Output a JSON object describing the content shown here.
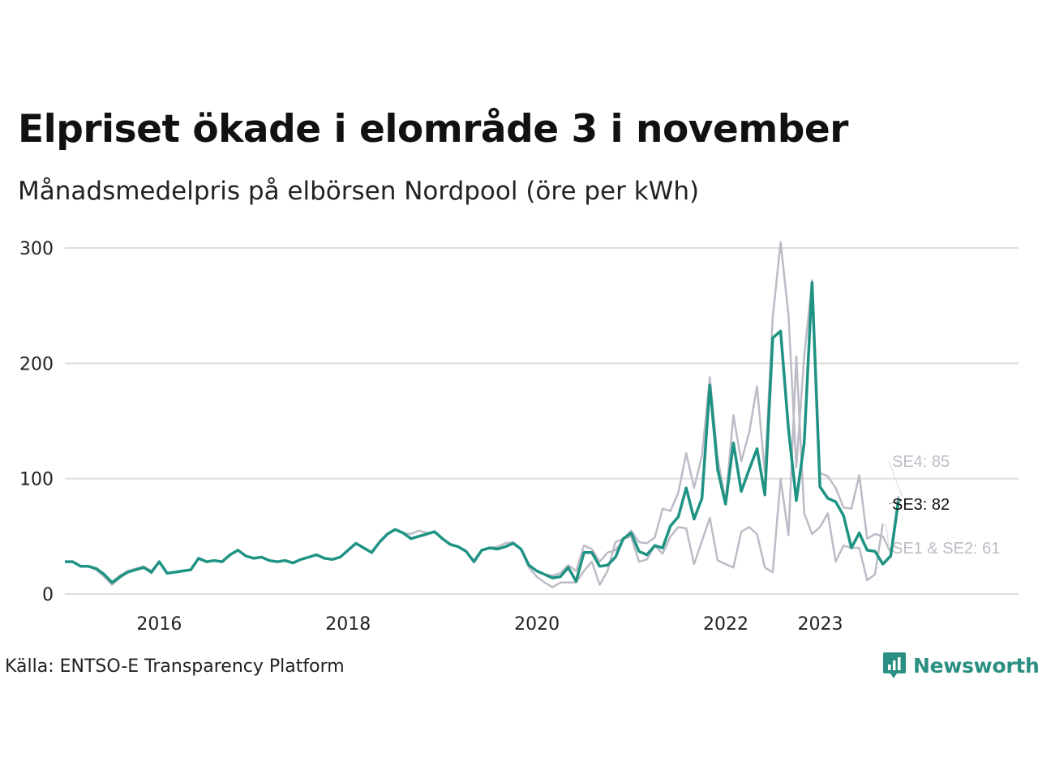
{
  "header": {
    "title": "Elpriset ökade i elområde 3 i november",
    "subtitle": "Månadsmedelpris på elbörsen Nordpool (öre per kWh)"
  },
  "footer": {
    "source": "Källa: ENTSO-E Transparency Platform",
    "brand": "Newsworthy"
  },
  "colors": {
    "highlight": "#1f9383",
    "context": "#bdbbc6",
    "grid": "#dddddd",
    "brand": "#2a8f82"
  },
  "chart_data": {
    "type": "line",
    "title": "Elpriset ökade i elområde 3 i november",
    "ylabel": "öre per kWh",
    "ylim": [
      0,
      300
    ],
    "yticks": [
      0,
      100,
      200,
      300
    ],
    "ytick_labels": [
      "0",
      "100",
      "200",
      "300"
    ],
    "xlim": [
      2015.0,
      2025.1
    ],
    "xticks": [
      2016,
      2018,
      2020,
      2022,
      2023
    ],
    "xtick_labels": [
      "2016",
      "2018",
      "2020",
      "2022",
      "2023"
    ],
    "xticks_pos": [
      2016.0,
      2018.0,
      2020.0,
      2022.0,
      2023.0
    ],
    "x_start": 2015.0,
    "x_step": 0.0833,
    "x_note": "monthly series; the 2022 and 2023 year ticks are placed at the positions of the printed labels",
    "series": [
      {
        "name": "SE3",
        "label": "SE3: 82",
        "role": "highlight",
        "values": [
          28,
          28,
          24,
          24,
          22,
          17,
          10,
          15,
          19,
          21,
          23,
          19,
          28,
          18,
          19,
          20,
          21,
          31,
          28,
          29,
          28,
          34,
          38,
          33,
          31,
          32,
          29,
          28,
          29,
          27,
          30,
          32,
          34,
          31,
          30,
          32,
          38,
          44,
          40,
          36,
          45,
          52,
          56,
          53,
          48,
          50,
          52,
          54,
          48,
          43,
          41,
          37,
          28,
          38,
          40,
          39,
          41,
          44,
          39,
          25,
          20,
          17,
          14,
          15,
          23,
          11,
          36,
          36,
          24,
          25,
          32,
          48,
          53,
          37,
          34,
          42,
          40,
          59,
          67,
          92,
          65,
          83,
          181,
          108,
          78,
          131,
          89,
          108,
          126,
          86,
          222,
          228,
          143,
          81,
          131,
          270,
          93,
          83,
          80,
          68,
          40,
          53,
          38,
          37,
          26,
          33,
          82
        ]
      },
      {
        "name": "SE4",
        "label": "SE4: 85",
        "role": "context",
        "values": [
          28,
          28,
          24,
          24,
          21,
          17,
          10,
          16,
          20,
          22,
          24,
          20,
          28,
          18,
          19,
          20,
          21,
          31,
          28,
          29,
          28,
          34,
          38,
          33,
          31,
          32,
          29,
          28,
          29,
          27,
          30,
          32,
          34,
          31,
          30,
          32,
          38,
          44,
          40,
          36,
          45,
          52,
          56,
          53,
          52,
          55,
          53,
          54,
          48,
          43,
          41,
          37,
          28,
          38,
          40,
          41,
          44,
          45,
          39,
          25,
          20,
          17,
          16,
          18,
          25,
          20,
          42,
          39,
          28,
          36,
          38,
          47,
          55,
          45,
          44,
          49,
          74,
          72,
          88,
          122,
          92,
          120,
          188,
          118,
          80,
          155,
          115,
          140,
          180,
          105,
          240,
          305,
          242,
          110,
          206,
          272,
          105,
          102,
          92,
          75,
          74,
          103,
          48,
          52,
          50,
          36,
          85
        ]
      },
      {
        "name": "SE1 & SE2",
        "label": "SE1 & SE2: 61",
        "role": "context",
        "values": [
          28,
          28,
          24,
          24,
          21,
          15,
          8,
          14,
          19,
          21,
          23,
          18,
          28,
          18,
          19,
          20,
          21,
          31,
          28,
          29,
          28,
          34,
          38,
          33,
          31,
          32,
          29,
          28,
          29,
          27,
          30,
          32,
          34,
          31,
          30,
          32,
          38,
          44,
          40,
          36,
          45,
          52,
          56,
          53,
          48,
          50,
          52,
          54,
          48,
          43,
          41,
          37,
          28,
          38,
          40,
          39,
          41,
          44,
          39,
          23,
          15,
          10,
          6,
          10,
          10,
          10,
          20,
          28,
          8,
          20,
          45,
          48,
          50,
          28,
          30,
          42,
          35,
          50,
          58,
          57,
          26,
          46,
          66,
          29,
          26,
          23,
          54,
          58,
          52,
          23,
          19,
          100,
          51,
          206,
          70,
          52,
          58,
          70,
          28,
          42,
          40,
          40,
          12,
          17,
          61
        ]
      }
    ]
  }
}
